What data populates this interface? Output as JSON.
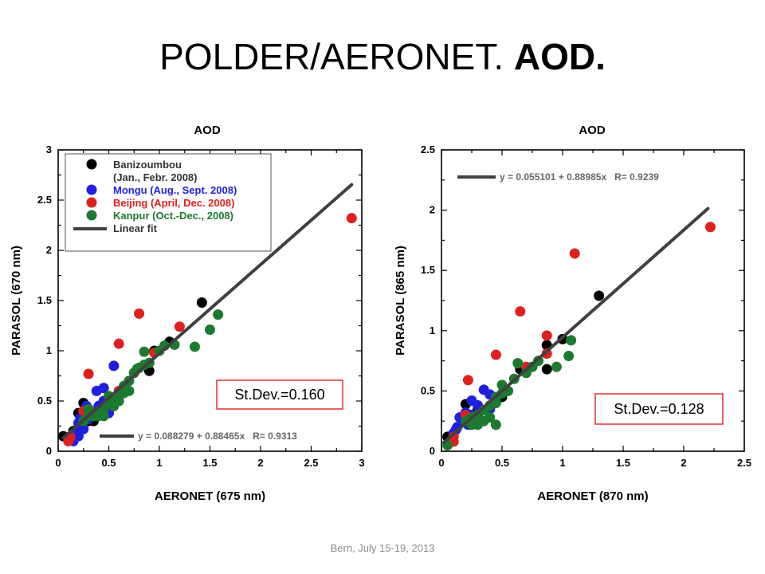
{
  "slide": {
    "title_plain": "POLDER/AERONET. ",
    "title_bold": "AOD.",
    "footer": "Bern, July 15-19, 2013"
  },
  "colors": {
    "Banizoumbou": "#000000",
    "Mongu": "#1f1fe0",
    "Beijing": "#e0201e",
    "Kanpur": "#1b7a2e",
    "fit": "#404040",
    "stdev_border": "#e0302a"
  },
  "chart_data": [
    {
      "type": "scatter",
      "title": "AOD",
      "xlabel": "AERONET (675 nm)",
      "ylabel": "PARASOL (670 nm)",
      "xlim": [
        0,
        3
      ],
      "ylim": [
        0,
        3
      ],
      "xticks": [
        "0",
        "0.5",
        "1",
        "1.5",
        "2",
        "2.5",
        "3"
      ],
      "yticks": [
        "0",
        "0.5",
        "1",
        "1.5",
        "2",
        "2.5",
        "3"
      ],
      "legend": {
        "entries": [
          {
            "series": "Banizoumbou",
            "label": "Banizoumbou",
            "sublabel": "(Jan., Febr. 2008)"
          },
          {
            "series": "Mongu",
            "label": "Mongu (Aug., Sept. 2008)"
          },
          {
            "series": "Beijing",
            "label": "Beijing (April, Dec. 2008)"
          },
          {
            "series": "Kanpur",
            "label": "Kanpur (Oct.-Dec., 2008)"
          },
          {
            "series": "fit",
            "label": "Linear fit"
          }
        ]
      },
      "fit": {
        "intercept": 0.088279,
        "slope": 0.88465,
        "x_range": [
          0.05,
          2.9
        ],
        "equation": "y = 0.088279 + 0.88465x",
        "r": "R= 0.9313"
      },
      "stdev": "St.Dev.=0.160",
      "series": [
        {
          "name": "Banizoumbou",
          "points": [
            [
              0.05,
              0.15
            ],
            [
              0.15,
              0.2
            ],
            [
              0.2,
              0.38
            ],
            [
              0.25,
              0.48
            ],
            [
              0.3,
              0.42
            ],
            [
              0.3,
              0.3
            ],
            [
              0.9,
              0.8
            ],
            [
              0.95,
              1.0
            ],
            [
              1.1,
              1.09
            ],
            [
              1.42,
              1.48
            ],
            [
              0.35,
              0.3
            ]
          ]
        },
        {
          "name": "Mongu",
          "points": [
            [
              0.15,
              0.1
            ],
            [
              0.18,
              0.2
            ],
            [
              0.2,
              0.28
            ],
            [
              0.25,
              0.22
            ],
            [
              0.25,
              0.3
            ],
            [
              0.3,
              0.32
            ],
            [
              0.28,
              0.45
            ],
            [
              0.35,
              0.38
            ],
            [
              0.38,
              0.6
            ],
            [
              0.45,
              0.63
            ],
            [
              0.4,
              0.45
            ],
            [
              0.45,
              0.5
            ],
            [
              0.55,
              0.85
            ],
            [
              0.5,
              0.38
            ],
            [
              0.55,
              0.45
            ],
            [
              0.2,
              0.15
            ],
            [
              0.3,
              0.38
            ],
            [
              0.22,
              0.33
            ]
          ]
        },
        {
          "name": "Beijing",
          "points": [
            [
              0.1,
              0.1
            ],
            [
              0.12,
              0.14
            ],
            [
              0.3,
              0.77
            ],
            [
              0.6,
              1.07
            ],
            [
              0.8,
              1.37
            ],
            [
              1.2,
              1.24
            ],
            [
              2.9,
              2.32
            ],
            [
              0.25,
              0.4
            ],
            [
              0.6,
              0.6
            ],
            [
              0.75,
              0.78
            ],
            [
              0.95,
              0.98
            ],
            [
              0.45,
              0.42
            ]
          ]
        },
        {
          "name": "Kanpur",
          "points": [
            [
              0.25,
              0.3
            ],
            [
              0.3,
              0.35
            ],
            [
              0.35,
              0.35
            ],
            [
              0.4,
              0.4
            ],
            [
              0.45,
              0.43
            ],
            [
              0.5,
              0.48
            ],
            [
              0.55,
              0.52
            ],
            [
              0.55,
              0.45
            ],
            [
              0.6,
              0.55
            ],
            [
              0.65,
              0.58
            ],
            [
              0.7,
              0.6
            ],
            [
              0.7,
              0.7
            ],
            [
              0.75,
              0.78
            ],
            [
              0.78,
              0.82
            ],
            [
              0.8,
              0.83
            ],
            [
              0.85,
              0.86
            ],
            [
              0.85,
              0.99
            ],
            [
              0.9,
              0.88
            ],
            [
              1.0,
              1.0
            ],
            [
              1.05,
              1.05
            ],
            [
              1.15,
              1.06
            ],
            [
              1.35,
              1.04
            ],
            [
              1.5,
              1.21
            ],
            [
              1.58,
              1.36
            ],
            [
              0.65,
              0.65
            ],
            [
              0.6,
              0.5
            ],
            [
              0.5,
              0.55
            ],
            [
              0.4,
              0.35
            ],
            [
              0.3,
              0.42
            ],
            [
              0.45,
              0.35
            ]
          ]
        }
      ]
    },
    {
      "type": "scatter",
      "title": "AOD",
      "xlabel": "AERONET (870 nm)",
      "ylabel": "PARASOL (865 nm)",
      "xlim": [
        0,
        2.5
      ],
      "ylim": [
        0,
        2.5
      ],
      "xticks": [
        "0",
        "0.5",
        "1",
        "1.5",
        "2",
        "2.5"
      ],
      "yticks": [
        "0",
        "0.5",
        "1",
        "1.5",
        "2",
        "2.5"
      ],
      "fit": {
        "intercept": 0.055101,
        "slope": 0.88985,
        "x_range": [
          0.02,
          2.2
        ],
        "equation": "y = 0.055101 + 0.88985x",
        "r": "R= 0.9239"
      },
      "stdev": "St.Dev.=0.128",
      "series": [
        {
          "name": "Banizoumbou",
          "points": [
            [
              0.05,
              0.12
            ],
            [
              0.2,
              0.39
            ],
            [
              0.25,
              0.3
            ],
            [
              0.3,
              0.35
            ],
            [
              0.65,
              0.68
            ],
            [
              0.87,
              0.68
            ],
            [
              0.87,
              0.88
            ],
            [
              1.0,
              0.93
            ],
            [
              1.3,
              1.29
            ],
            [
              0.5,
              0.45
            ]
          ]
        },
        {
          "name": "Mongu",
          "points": [
            [
              0.08,
              0.08
            ],
            [
              0.1,
              0.15
            ],
            [
              0.13,
              0.2
            ],
            [
              0.15,
              0.28
            ],
            [
              0.18,
              0.25
            ],
            [
              0.2,
              0.32
            ],
            [
              0.25,
              0.42
            ],
            [
              0.25,
              0.3
            ],
            [
              0.3,
              0.38
            ],
            [
              0.35,
              0.51
            ],
            [
              0.4,
              0.47
            ],
            [
              0.4,
              0.35
            ],
            [
              0.12,
              0.18
            ],
            [
              0.3,
              0.28
            ],
            [
              0.22,
              0.22
            ]
          ]
        },
        {
          "name": "Beijing",
          "points": [
            [
              0.1,
              0.08
            ],
            [
              0.1,
              0.12
            ],
            [
              0.2,
              0.3
            ],
            [
              0.22,
              0.59
            ],
            [
              0.45,
              0.8
            ],
            [
              0.65,
              1.16
            ],
            [
              0.7,
              0.7
            ],
            [
              0.87,
              0.96
            ],
            [
              0.87,
              0.81
            ],
            [
              1.1,
              1.64
            ],
            [
              2.22,
              1.86
            ],
            [
              0.3,
              0.3
            ]
          ]
        },
        {
          "name": "Kanpur",
          "points": [
            [
              0.05,
              0.05
            ],
            [
              0.2,
              0.25
            ],
            [
              0.25,
              0.28
            ],
            [
              0.3,
              0.3
            ],
            [
              0.35,
              0.34
            ],
            [
              0.4,
              0.38
            ],
            [
              0.45,
              0.4
            ],
            [
              0.45,
              0.45
            ],
            [
              0.5,
              0.48
            ],
            [
              0.5,
              0.55
            ],
            [
              0.55,
              0.5
            ],
            [
              0.6,
              0.6
            ],
            [
              0.63,
              0.73
            ],
            [
              0.7,
              0.65
            ],
            [
              0.75,
              0.7
            ],
            [
              0.8,
              0.75
            ],
            [
              0.95,
              0.7
            ],
            [
              1.05,
              0.79
            ],
            [
              1.07,
              0.92
            ],
            [
              0.45,
              0.22
            ],
            [
              0.35,
              0.25
            ],
            [
              0.4,
              0.28
            ],
            [
              0.25,
              0.22
            ],
            [
              0.3,
              0.22
            ]
          ]
        }
      ]
    }
  ]
}
